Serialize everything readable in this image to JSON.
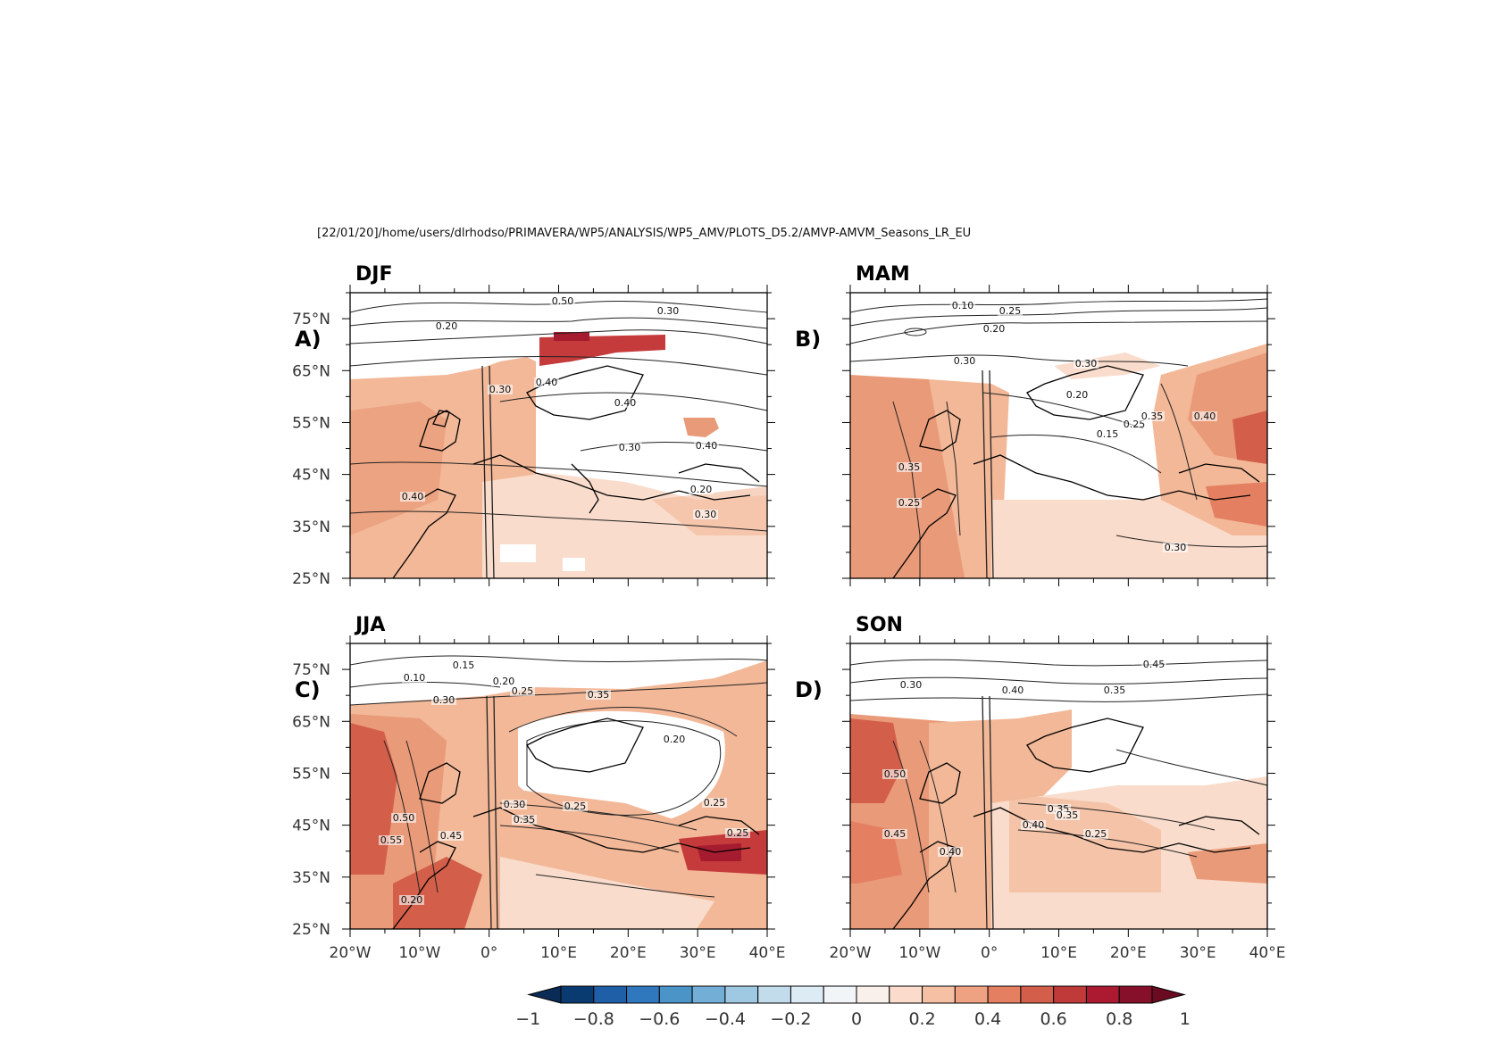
{
  "header": {
    "path": "[22/01/20]/home/users/dlrhodso/PRIMAVERA/WP5/ANALYSIS/WP5_AMV/PLOTS_D5.2/AMVP-AMVM_Seasons_LR_EU"
  },
  "axes": {
    "lat_ticks": [
      "75°N",
      "65°N",
      "55°N",
      "45°N",
      "35°N",
      "25°N"
    ],
    "lon_ticks": [
      "20°W",
      "10°W",
      "0°",
      "10°E",
      "20°E",
      "30°E",
      "40°E"
    ],
    "lat_range": [
      25,
      80
    ],
    "lon_range": [
      -20,
      40
    ]
  },
  "panels": [
    {
      "id": "A",
      "label": "A)",
      "season": "DJF",
      "contour_labels": [
        "0.50",
        "0.30",
        "0.20",
        "0.40",
        "0.30",
        "0.40",
        "0.30",
        "0.40",
        "0.20",
        "0.30",
        "0.40"
      ]
    },
    {
      "id": "B",
      "label": "B)",
      "season": "MAM",
      "contour_labels": [
        "0.10",
        "0.25",
        "0.20",
        "0.30",
        "0.30",
        "0.20",
        "0.25",
        "0.15",
        "0.35",
        "0.40",
        "0.35",
        "0.25",
        "0.30"
      ]
    },
    {
      "id": "C",
      "label": "C)",
      "season": "JJA",
      "contour_labels": [
        "0.10",
        "0.15",
        "0.20",
        "0.30",
        "0.25",
        "0.35",
        "0.20",
        "0.30",
        "0.25",
        "0.35",
        "0.25",
        "0.25",
        "0.45",
        "0.50",
        "0.55",
        "0.20"
      ]
    },
    {
      "id": "D",
      "label": "D)",
      "season": "SON",
      "contour_labels": [
        "0.45",
        "0.30",
        "0.40",
        "0.35",
        "0.50",
        "0.45",
        "0.40",
        "0.40",
        "0.35",
        "0.35",
        "0.25"
      ]
    }
  ],
  "colorbar": {
    "tick_labels": [
      "−1",
      "−0.8",
      "−0.6",
      "−0.4",
      "−0.2",
      "0",
      "0.2",
      "0.4",
      "0.6",
      "0.8",
      "1"
    ],
    "min": -1,
    "max": 1,
    "step": 0.1,
    "colors": [
      "#0a3b70",
      "#1f5fa8",
      "#2f78bd",
      "#4a94c8",
      "#73aed6",
      "#9fc8e2",
      "#c3dcec",
      "#ddebf4",
      "#f1f5f8",
      "#f9f0ec",
      "#fbdccc",
      "#f6c0a5",
      "#efa282",
      "#e47f62",
      "#d35f4a",
      "#c03a3a",
      "#ab1a30",
      "#86102a"
    ],
    "under_color": "#0a2b55",
    "over_color": "#6b0b21"
  },
  "colors": {
    "fill_weak": "#f9dccb",
    "fill_mid": "#f2b898",
    "fill_strong": "#e99a78",
    "fill_max": "#c53a3a",
    "contour": "#222222"
  }
}
